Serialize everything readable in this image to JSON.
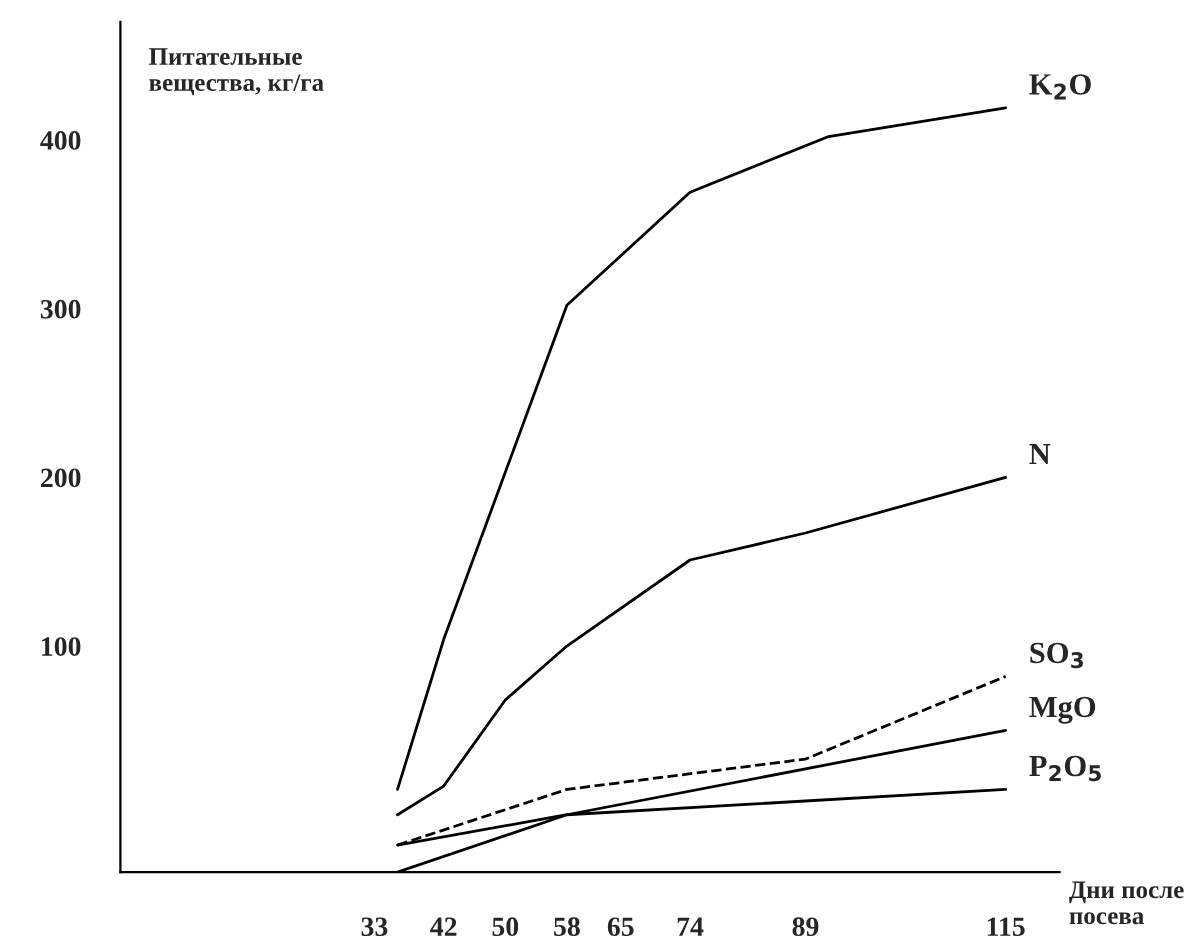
{
  "chart_data": {
    "type": "line",
    "ylabel": "Питательные\nвещества, кг/га",
    "xlabel": "Дни после\nпосева",
    "series": [
      {
        "name": "K$_{2}$O",
        "color": "#000000",
        "line_style": "solid",
        "x": [
          36,
          42,
          58,
          74,
          92,
          115
        ],
        "values": [
          15,
          104,
          302,
          369,
          402,
          419
        ]
      },
      {
        "name": "N",
        "color": "#000000",
        "line_style": "solid",
        "x": [
          36,
          42,
          50,
          58,
          74,
          89,
          115
        ],
        "values": [
          0,
          17,
          68,
          100,
          151,
          167,
          200
        ]
      },
      {
        "name": "SO$_{3}$",
        "color": "#000000",
        "line_style": "dashed",
        "x": [
          36,
          58,
          89,
          115
        ],
        "values": [
          -18,
          15,
          33,
          82
        ]
      },
      {
        "name": "MgO",
        "color": "#000000",
        "line_style": "solid",
        "x": [
          36,
          58,
          115
        ],
        "values": [
          -34,
          0,
          50
        ]
      },
      {
        "name": "P$_{2}$O$_{5}$",
        "color": "#000000",
        "line_style": "solid",
        "x": [
          36,
          58,
          115
        ],
        "values": [
          -18,
          0,
          15
        ]
      }
    ],
    "xlim": [
      0,
      122
    ],
    "xticks": [
      33,
      42,
      50,
      58,
      65,
      74,
      89,
      115
    ],
    "ylim": [
      -34,
      470
    ],
    "yticks": [
      100,
      200,
      300,
      400
    ],
    "grid": false,
    "legend": false,
    "marker": "none"
  }
}
